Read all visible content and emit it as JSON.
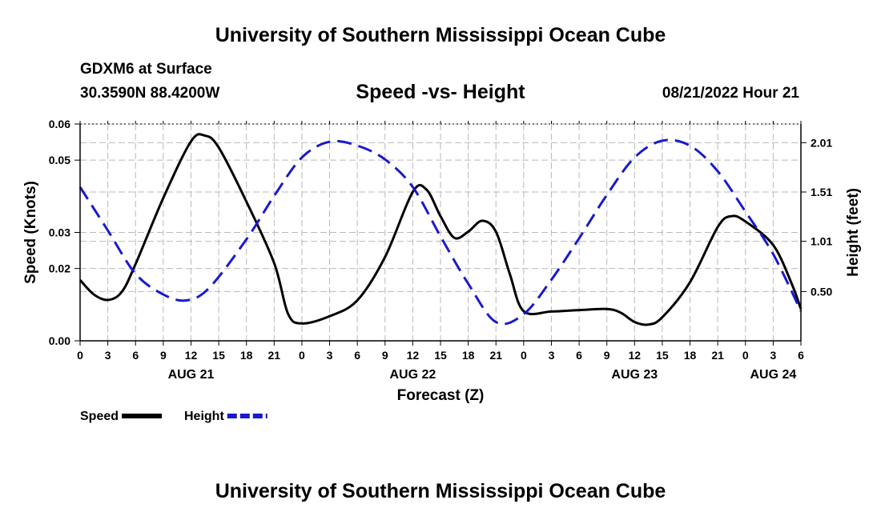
{
  "header": {
    "title": "University of Southern Mississippi Ocean Cube",
    "station": "GDXM6 at Surface",
    "coords": "30.3590N  88.4200W",
    "chart_title": "Speed -vs- Height",
    "datetime": "08/21/2022 Hour 21"
  },
  "footer": {
    "title": "University of Southern Mississippi Ocean Cube"
  },
  "chart_data": {
    "type": "line",
    "title": "Speed -vs- Height",
    "xlabel": "Forecast (Z)",
    "ylabel": "Speed (Knots)",
    "y2label": "Height (feet)",
    "x_hours_range": [
      0,
      78
    ],
    "x_tick_labels": [
      "0",
      "3",
      "6",
      "9",
      "12",
      "15",
      "18",
      "21",
      "0",
      "3",
      "6",
      "9",
      "12",
      "15",
      "18",
      "21",
      "0",
      "3",
      "6",
      "9",
      "12",
      "15",
      "18",
      "21",
      "0",
      "3",
      "6"
    ],
    "date_labels": [
      {
        "label": "AUG 21",
        "hour": 12
      },
      {
        "label": "AUG 22",
        "hour": 36
      },
      {
        "label": "AUG 23",
        "hour": 60
      },
      {
        "label": "AUG 24",
        "hour": 75
      }
    ],
    "ylim": [
      0,
      0.06
    ],
    "y_ticks": [
      0,
      0.02,
      0.03,
      0.05,
      0.06
    ],
    "y_tick_labels": [
      "0.00",
      "0.02",
      "0.03",
      "0.05",
      "0.06"
    ],
    "y2lim": [
      0,
      2.2
    ],
    "y2_ticks": [
      0.5,
      1.01,
      1.51,
      2.01
    ],
    "y2_tick_labels": [
      "0.50",
      "1.01",
      "1.51",
      "2.01"
    ],
    "grid": true,
    "legend": [
      {
        "name": "Speed",
        "color": "#000000",
        "style": "solid"
      },
      {
        "name": "Height",
        "color": "#1a1acc",
        "style": "dashed"
      }
    ],
    "series": [
      {
        "name": "Speed",
        "axis": "left",
        "color": "#000000",
        "x": [
          0,
          1.5,
          3,
          4.5,
          6,
          9,
          12,
          13.5,
          15,
          18,
          21,
          22.5,
          24,
          27,
          30,
          33,
          36,
          37.5,
          39,
          40.5,
          42,
          43.5,
          45,
          46.5,
          48,
          51,
          54,
          57,
          58.5,
          60,
          61.5,
          63,
          66,
          69,
          70.5,
          72,
          75,
          77,
          78
        ],
        "values": [
          0.0168,
          0.0128,
          0.0113,
          0.0135,
          0.0212,
          0.0395,
          0.0552,
          0.0568,
          0.0535,
          0.0385,
          0.0215,
          0.0075,
          0.0048,
          0.0068,
          0.0112,
          0.0232,
          0.0412,
          0.0418,
          0.0345,
          0.0285,
          0.0302,
          0.0332,
          0.0302,
          0.0185,
          0.0082,
          0.0081,
          0.0085,
          0.0088,
          0.0078,
          0.0052,
          0.0045,
          0.0065,
          0.0162,
          0.0315,
          0.0345,
          0.033,
          0.0265,
          0.0158,
          0.0088
        ]
      },
      {
        "name": "Height",
        "axis": "right",
        "color": "#1a1acc",
        "x": [
          0,
          3,
          6,
          9,
          11.5,
          14,
          18,
          21,
          24,
          27,
          30,
          33,
          36,
          39,
          42,
          45,
          48,
          51,
          54,
          57,
          60,
          63,
          66,
          69,
          72,
          75,
          78
        ],
        "values": [
          1.56,
          1.12,
          0.68,
          0.47,
          0.41,
          0.54,
          1.03,
          1.47,
          1.86,
          2.02,
          1.98,
          1.84,
          1.56,
          1.06,
          0.58,
          0.19,
          0.27,
          0.62,
          1.04,
          1.48,
          1.86,
          2.03,
          1.98,
          1.72,
          1.31,
          0.88,
          0.3
        ]
      }
    ]
  }
}
